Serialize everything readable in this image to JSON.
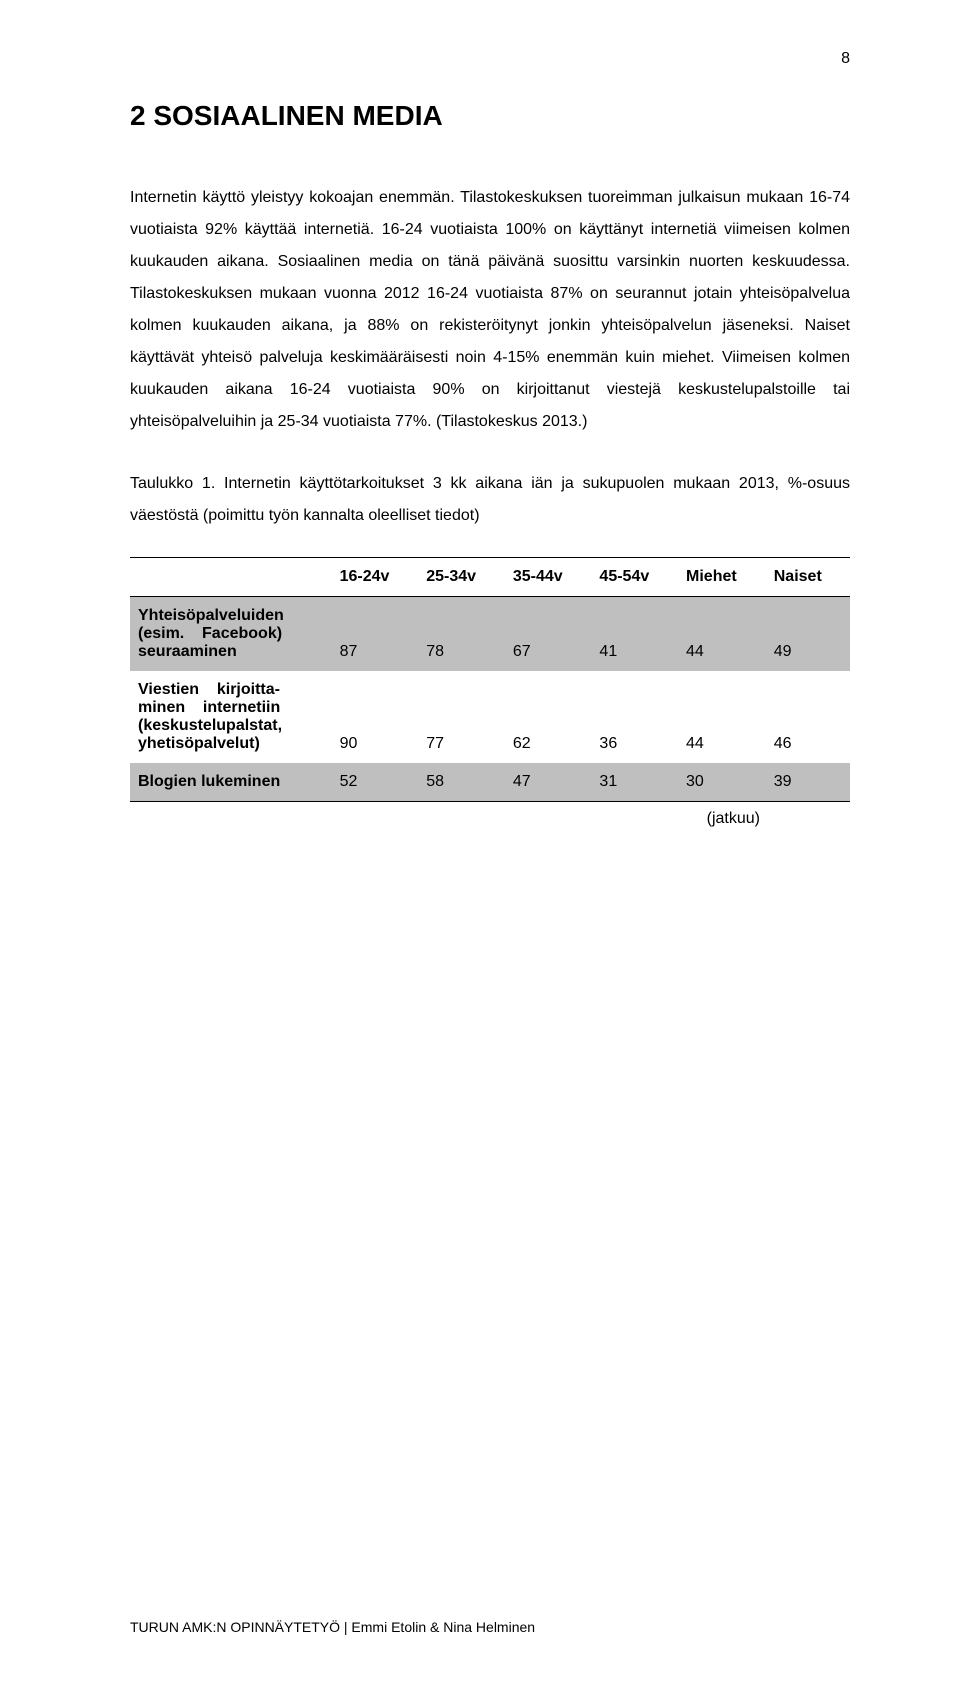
{
  "page_number": "8",
  "heading": "2 SOSIAALINEN MEDIA",
  "paragraph1": "Internetin käyttö yleistyy kokoajan enemmän. Tilastokeskuksen tuoreimman julkaisun mukaan 16-74 vuotiaista 92% käyttää internetiä. 16-24 vuotiaista 100% on käyttänyt internetiä viimeisen kolmen kuukauden aikana. Sosiaalinen media on tänä päivänä suosittu varsinkin nuorten keskuudessa. Tilastokeskuksen mukaan vuonna 2012 16-24 vuotiaista 87% on seurannut jotain yhteisöpalvelua kolmen kuukauden aikana, ja 88% on rekisteröitynyt jonkin yhteisöpalvelun jäseneksi. Naiset käyttävät yhteisö palveluja keskimääräisesti noin 4-15% enemmän kuin miehet. Viimeisen kolmen kuukauden aikana 16-24 vuotiaista 90% on kirjoittanut viestejä keskustelupalstoille tai yhteisöpalveluihin ja 25-34 vuotiaista 77%. (Tilastokeskus 2013.)",
  "table_caption": "Taulukko 1. Internetin käyttötarkoitukset 3 kk aikana iän ja sukupuolen mukaan 2013, %-osuus väestöstä (poimittu työn kannalta oleelliset tiedot)",
  "table": {
    "type": "table",
    "columns": [
      "",
      "16-24v",
      "25-34v",
      "35-44v",
      "45-54v",
      "Miehet",
      "Naiset"
    ],
    "rows": [
      {
        "label_lines": [
          "Yhteisöpalveluiden",
          "(esim. Facebook)",
          "seuraaminen"
        ],
        "values": [
          "87",
          "78",
          "67",
          "41",
          "44",
          "49"
        ],
        "bg": "gray"
      },
      {
        "label_lines": [
          "Viestien kirjoitta-",
          "minen internetiin",
          "(keskustelupalstat,",
          "yhetisöpalvelut)"
        ],
        "values": [
          "90",
          "77",
          "62",
          "36",
          "44",
          "46"
        ],
        "bg": "white"
      },
      {
        "label_lines": [
          "Blogien lukeminen"
        ],
        "values": [
          "52",
          "58",
          "47",
          "31",
          "30",
          "39"
        ],
        "bg": "gray"
      }
    ],
    "header_bg": "#ffffff",
    "gray_bg": "#bfbfbf",
    "white_bg": "#ffffff",
    "border_color": "#000000",
    "font_size": 16
  },
  "continues": "(jatkuu)",
  "footer": "TURUN AMK:N OPINNÄYTETYÖ | Emmi Etolin & Nina Helminen"
}
